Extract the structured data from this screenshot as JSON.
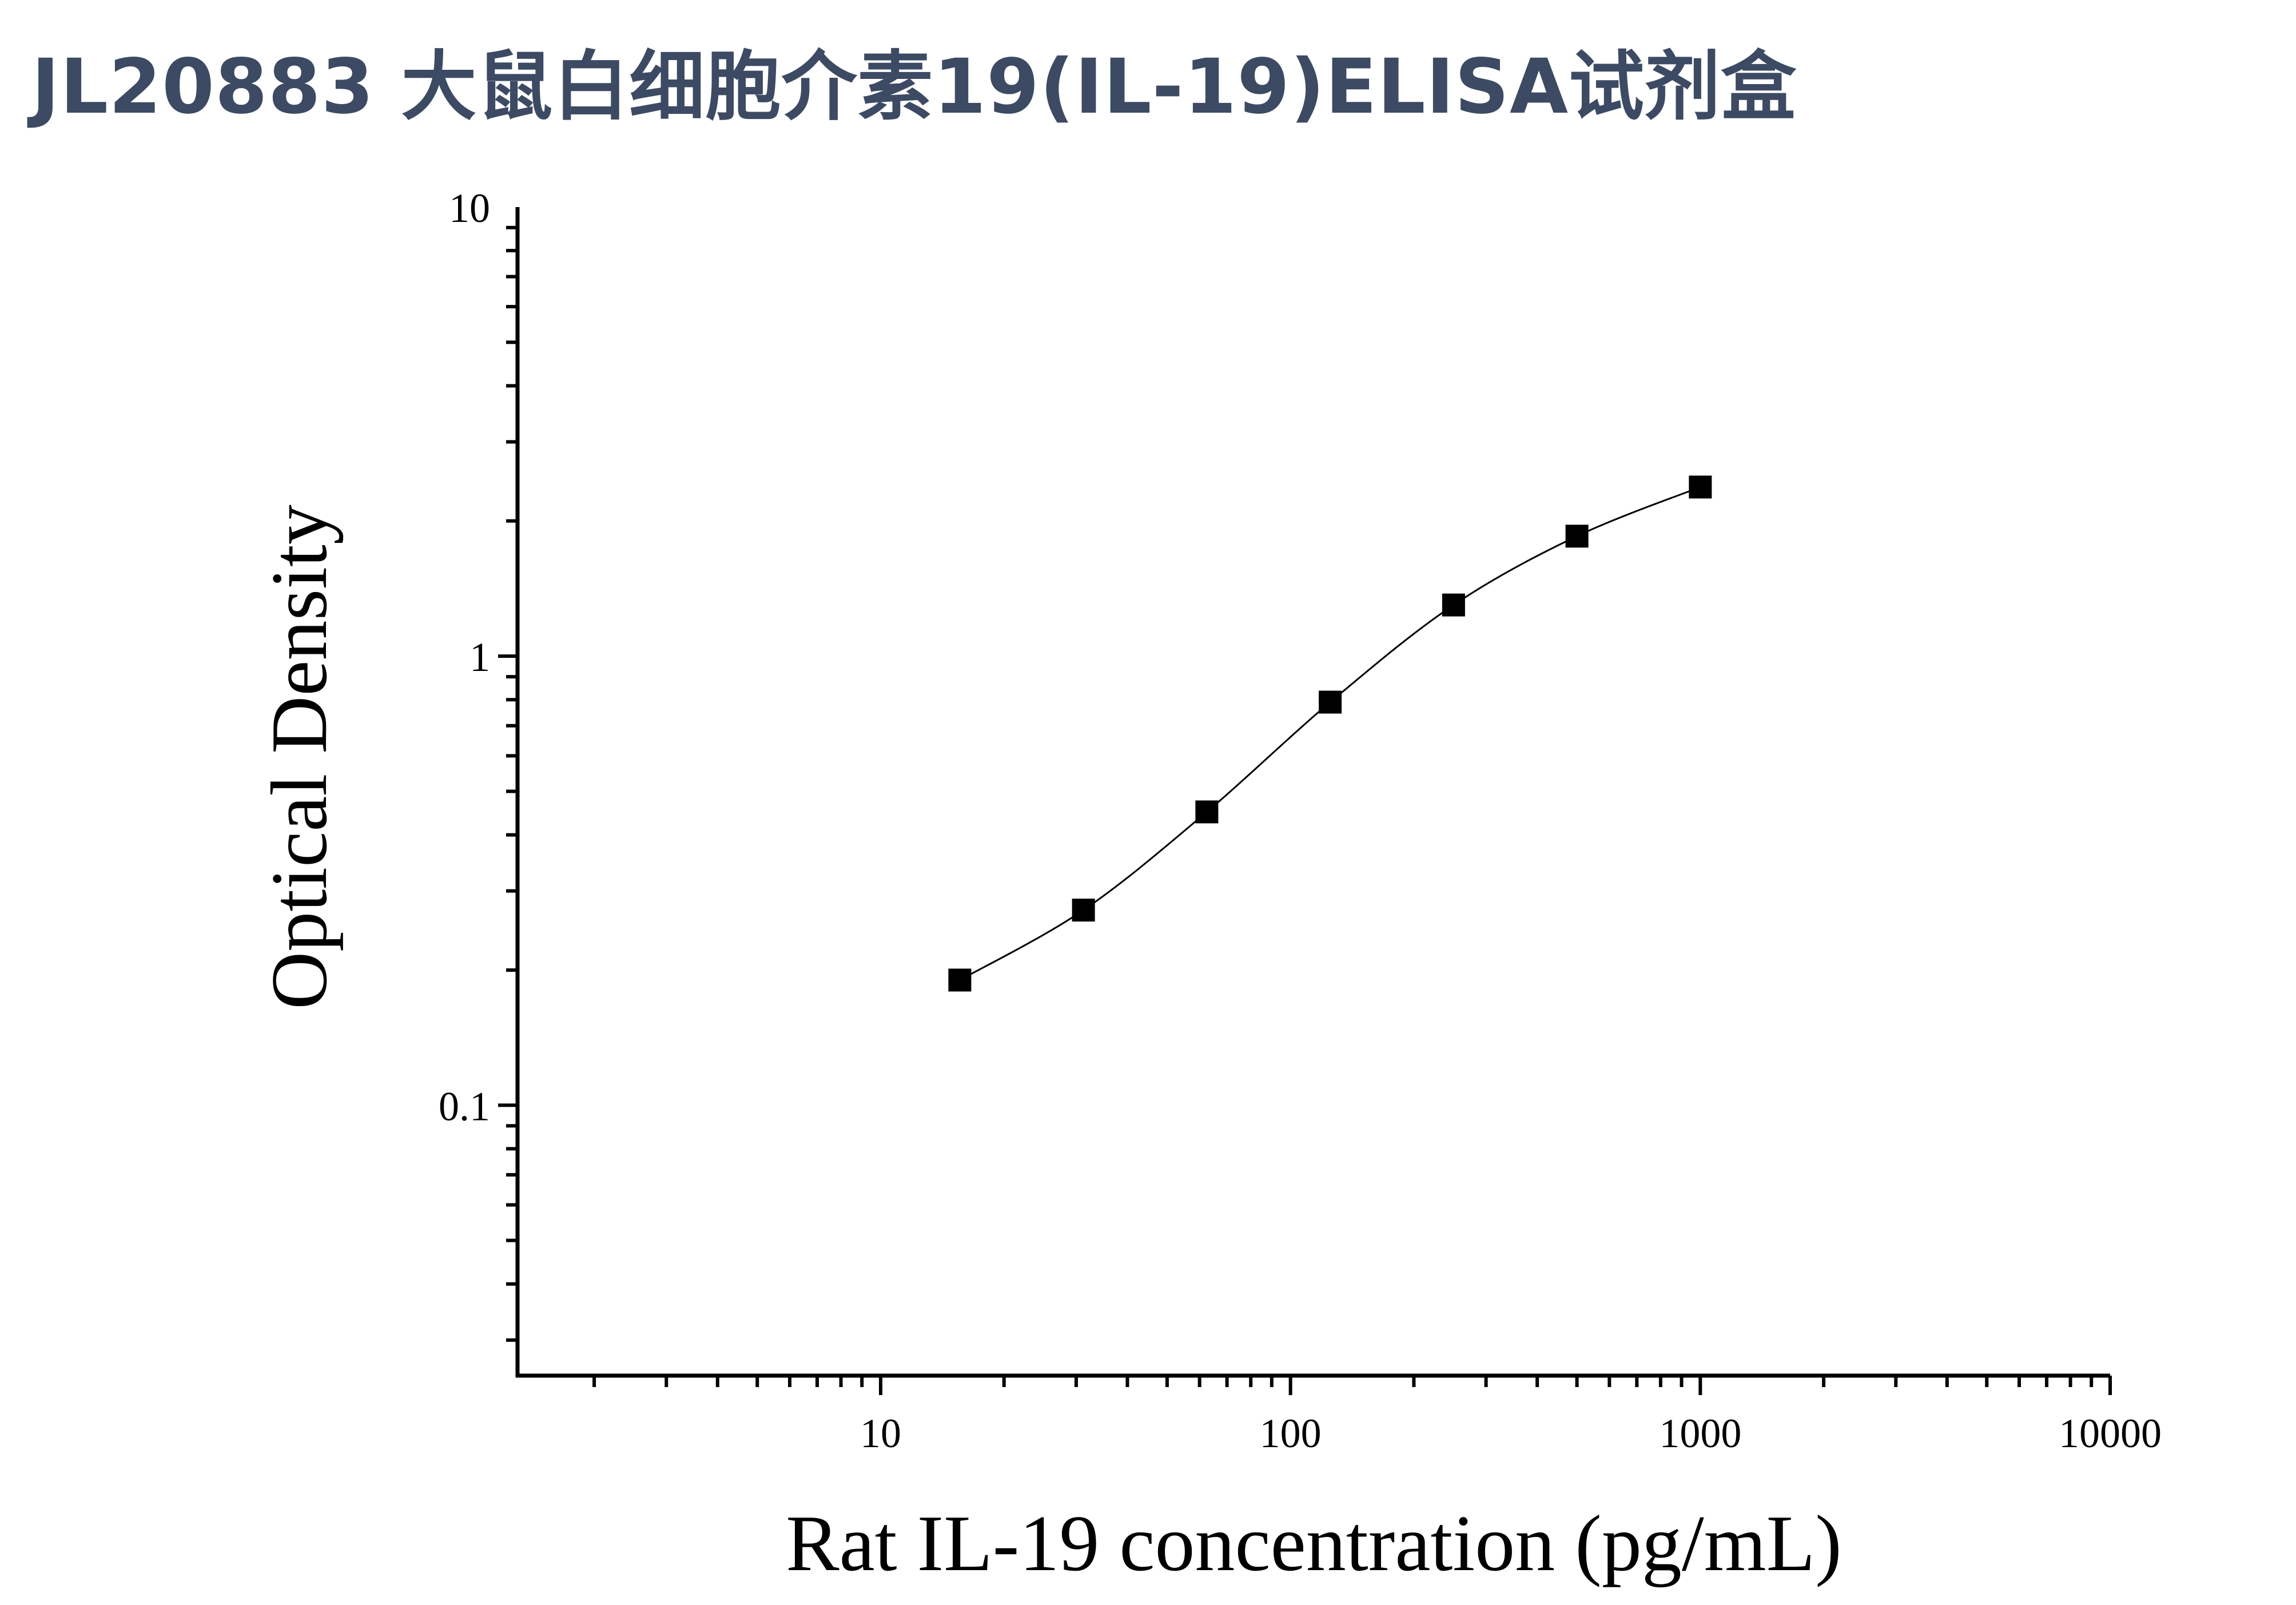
{
  "title": "JL20883 大鼠白细胞介素19(IL-19)ELISA试剂盒",
  "chart_data": {
    "type": "scatter",
    "xlabel": "Rat IL-19 concentration (pg/mL)",
    "ylabel": "Optical Density",
    "x_scale": "log",
    "y_scale": "log",
    "xlim": [
      1.3,
      10000
    ],
    "ylim": [
      0.025,
      10
    ],
    "x_ticks": [
      10,
      100,
      1000,
      10000
    ],
    "x_tick_labels": [
      "10",
      "100",
      "1000",
      "10000"
    ],
    "y_ticks": [
      0.1,
      1,
      10
    ],
    "y_tick_labels": [
      "0.1",
      "1",
      "10"
    ],
    "grid": false,
    "series": [
      {
        "marker": "square",
        "color": "#000000",
        "x": [
          15.6,
          31.25,
          62.5,
          125,
          250,
          500,
          1000
        ],
        "y": [
          0.19,
          0.272,
          0.45,
          0.79,
          1.3,
          1.85,
          2.38
        ]
      }
    ],
    "fit_curve": true
  }
}
